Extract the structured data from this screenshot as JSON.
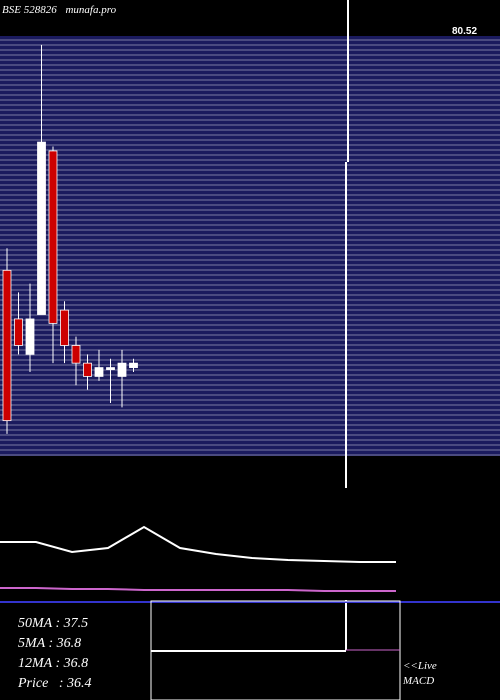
{
  "header": {
    "symbol": "BSE 528826",
    "site": "munafa.pro"
  },
  "price_label": "80.52",
  "stats": {
    "ma50": "50MA : 37.5",
    "ma5": "5MA : 36.8",
    "ma12": "12MA : 36.8",
    "price": "Price   : 36.4"
  },
  "macd_label": {
    "line1": "<<Live",
    "line2": "MACD"
  },
  "colors": {
    "background": "#000000",
    "panel": "#1a1a5e",
    "grid": "#ffffff",
    "bear": "#cc0000",
    "bull": "#ffffff",
    "ma": "#cc66cc",
    "macd_blue": "#3333cc"
  },
  "chart_data": {
    "type": "candlestick",
    "candles": [
      {
        "o": 57,
        "h": 62,
        "l": 20,
        "c": 23
      },
      {
        "o": 46,
        "h": 52,
        "l": 38,
        "c": 40
      },
      {
        "o": 38,
        "h": 54,
        "l": 34,
        "c": 46
      },
      {
        "o": 47,
        "h": 108,
        "l": 47,
        "c": 86
      },
      {
        "o": 84,
        "h": 85,
        "l": 36,
        "c": 45
      },
      {
        "o": 48,
        "h": 50,
        "l": 36,
        "c": 40
      },
      {
        "o": 40,
        "h": 42,
        "l": 31,
        "c": 36
      },
      {
        "o": 36,
        "h": 38,
        "l": 30,
        "c": 33
      },
      {
        "o": 33,
        "h": 39,
        "l": 32,
        "c": 35
      },
      {
        "o": 35,
        "h": 37,
        "l": 27,
        "c": 35
      },
      {
        "o": 33,
        "h": 39,
        "l": 26,
        "c": 36
      },
      {
        "o": 35,
        "h": 37,
        "l": 34,
        "c": 36
      }
    ],
    "volume": [
      58,
      58,
      48,
      52,
      73,
      52,
      46,
      42,
      40,
      39,
      38,
      38
    ],
    "ma_line": [
      12,
      12,
      11,
      11,
      10,
      10,
      10,
      10,
      10,
      9,
      9,
      9
    ]
  }
}
